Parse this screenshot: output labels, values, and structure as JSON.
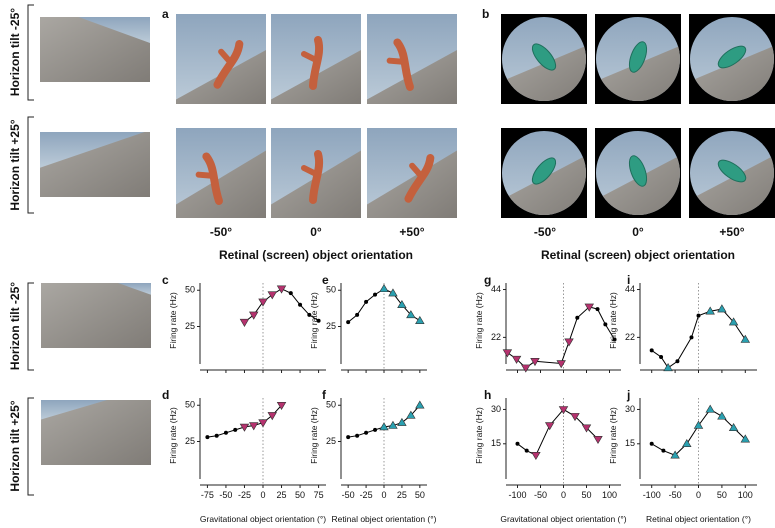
{
  "figure": {
    "panels": {
      "a": "a",
      "b": "b"
    },
    "row_labels": [
      "Horizon tilt -25°",
      "Horizon tilt +25°",
      "Horizon tilt -25°",
      "Horizon tilt +25°"
    ],
    "orientation_labels_a": [
      "-50°",
      "0°",
      "+50°"
    ],
    "orientation_labels_b": [
      "-50°",
      "0°",
      "+50°"
    ],
    "axis_title_a": "Retinal (screen) object orientation",
    "axis_title_b": "Retinal (screen) object orientation"
  },
  "chart_data": [
    {
      "type": "line",
      "panel": "c",
      "ylabel": "Firing rate (Hz)",
      "color": "#000000",
      "marker": "triangle-down",
      "x": [
        -25,
        -12.5,
        0,
        12.5,
        25,
        37.5,
        50,
        62.5,
        75
      ],
      "values": [
        28,
        33,
        42,
        47,
        51,
        48,
        40,
        33,
        29
      ],
      "point_colors": [
        "#b5326e",
        "#b5326e",
        "#b5326e",
        "#b5326e",
        "#b5326e",
        "#000000",
        "#000000",
        "#000000",
        "#000000"
      ],
      "xlim": [
        -85,
        85
      ],
      "xticks": [
        -75,
        -50,
        -25,
        0,
        25,
        50,
        75
      ],
      "xtick_labels": false,
      "ylim": [
        -5,
        55
      ],
      "yticks": [
        25,
        50
      ],
      "vline": 0
    },
    {
      "type": "line",
      "panel": "d",
      "ylabel": "Firing rate (Hz)",
      "xlabel": "Gravitational object orientation (°)",
      "color": "#000000",
      "marker": "triangle-down",
      "x": [
        -75,
        -62.5,
        -50,
        -37.5,
        -25,
        -12.5,
        0,
        12.5,
        25
      ],
      "values": [
        28,
        29,
        31,
        33,
        35,
        36,
        38,
        43,
        50
      ],
      "point_colors": [
        "#000000",
        "#000000",
        "#000000",
        "#000000",
        "#b5326e",
        "#b5326e",
        "#b5326e",
        "#b5326e",
        "#b5326e"
      ],
      "xlim": [
        -85,
        85
      ],
      "xticks": [
        -75,
        -50,
        -25,
        0,
        25,
        50,
        75
      ],
      "xtick_labels": true,
      "ylim": [
        -5,
        55
      ],
      "yticks": [
        25,
        50
      ],
      "vline": 0
    },
    {
      "type": "line",
      "panel": "e",
      "ylabel": "Firing rate (Hz)",
      "color": "#000000",
      "marker": "triangle-up",
      "x": [
        -50,
        -37.5,
        -25,
        -12.5,
        0,
        12.5,
        25,
        37.5,
        50
      ],
      "values": [
        28,
        33,
        42,
        47,
        51,
        48,
        40,
        33,
        29
      ],
      "point_colors": [
        "#000000",
        "#000000",
        "#000000",
        "#000000",
        "#2aa0b0",
        "#2aa0b0",
        "#2aa0b0",
        "#2aa0b0",
        "#2aa0b0"
      ],
      "xlim": [
        -60,
        60
      ],
      "xticks": [
        -50,
        -25,
        0,
        25,
        50
      ],
      "xtick_labels": false,
      "ylim": [
        -5,
        55
      ],
      "yticks": [
        25,
        50
      ],
      "vline": 0
    },
    {
      "type": "line",
      "panel": "f",
      "ylabel": "Firing rate (Hz)",
      "xlabel": "Retinal object orientation (°)",
      "color": "#000000",
      "marker": "triangle-up",
      "x": [
        -50,
        -37.5,
        -25,
        -12.5,
        0,
        12.5,
        25,
        37.5,
        50
      ],
      "values": [
        28,
        29,
        31,
        33,
        35,
        36,
        38,
        43,
        50
      ],
      "point_colors": [
        "#000000",
        "#000000",
        "#000000",
        "#000000",
        "#2aa0b0",
        "#2aa0b0",
        "#2aa0b0",
        "#2aa0b0",
        "#2aa0b0"
      ],
      "xlim": [
        -60,
        60
      ],
      "xticks": [
        -50,
        -25,
        0,
        25,
        50
      ],
      "xtick_labels": true,
      "ylim": [
        -5,
        55
      ],
      "yticks": [
        25,
        50
      ],
      "vline": 0
    },
    {
      "type": "line",
      "panel": "g",
      "ylabel": "Firing rate (Hz)",
      "color": "#000000",
      "marker": "triangle-down",
      "x": [
        -122,
        -102,
        -82,
        -62,
        -5,
        12,
        30,
        56,
        74,
        91,
        111
      ],
      "values": [
        15,
        12,
        8,
        11,
        10,
        20,
        31,
        36,
        35,
        28,
        21
      ],
      "point_colors": [
        "#b5326e",
        "#b5326e",
        "#b5326e",
        "#b5326e",
        "#b5326e",
        "#b5326e",
        "#000000",
        "#b5326e",
        "#000000",
        "#000000",
        "#000000"
      ],
      "xlim": [
        -125,
        125
      ],
      "xticks": [
        -100,
        -50,
        0,
        50,
        100
      ],
      "xtick_labels": false,
      "ylim": [
        7,
        47
      ],
      "yticks": [
        22,
        44
      ],
      "vline": 0
    },
    {
      "type": "line",
      "panel": "h",
      "ylabel": "Firing rate (Hz)",
      "xlabel": "Gravitational object orientation (°)",
      "color": "#000000",
      "marker": "triangle-down",
      "x": [
        -100,
        -80,
        -60,
        -30,
        0,
        25,
        50,
        75
      ],
      "values": [
        15,
        12,
        10,
        23,
        30,
        27,
        22,
        17
      ],
      "point_colors": [
        "#000000",
        "#000000",
        "#b5326e",
        "#b5326e",
        "#b5326e",
        "#b5326e",
        "#b5326e",
        "#b5326e"
      ],
      "xlim": [
        -125,
        125
      ],
      "xticks": [
        -100,
        -50,
        0,
        50,
        100
      ],
      "xtick_labels": true,
      "ylim": [
        -3,
        35
      ],
      "yticks": [
        15,
        30
      ],
      "vline": 0
    },
    {
      "type": "line",
      "panel": "i",
      "ylabel": "Firing rate (Hz)",
      "color": "#000000",
      "marker": "triangle-up",
      "x": [
        -100,
        -80,
        -65,
        -45,
        -15,
        0,
        25,
        50,
        75,
        100
      ],
      "values": [
        16,
        13,
        8,
        11,
        22,
        32,
        34,
        35,
        29,
        21
      ],
      "point_colors": [
        "#000000",
        "#000000",
        "#2aa0b0",
        "#000000",
        "#000000",
        "#000000",
        "#2aa0b0",
        "#2aa0b0",
        "#2aa0b0",
        "#2aa0b0"
      ],
      "xlim": [
        -125,
        125
      ],
      "xticks": [
        -100,
        -50,
        0,
        50,
        100
      ],
      "xtick_labels": false,
      "ylim": [
        7,
        47
      ],
      "yticks": [
        22,
        44
      ],
      "vline": 0
    },
    {
      "type": "line",
      "panel": "j",
      "ylabel": "Firing rate (Hz)",
      "xlabel": "Retinal object orientation (°)",
      "color": "#000000",
      "marker": "triangle-up",
      "x": [
        -100,
        -75,
        -50,
        -25,
        0,
        25,
        50,
        75,
        100
      ],
      "values": [
        15,
        12,
        10,
        15,
        23,
        30,
        27,
        22,
        17
      ],
      "point_colors": [
        "#000000",
        "#000000",
        "#2aa0b0",
        "#2aa0b0",
        "#2aa0b0",
        "#2aa0b0",
        "#2aa0b0",
        "#2aa0b0",
        "#2aa0b0"
      ],
      "xlim": [
        -125,
        125
      ],
      "xticks": [
        -100,
        -50,
        0,
        50,
        100
      ],
      "xtick_labels": true,
      "ylim": [
        -3,
        35
      ],
      "yticks": [
        15,
        30
      ],
      "vline": 0
    }
  ]
}
